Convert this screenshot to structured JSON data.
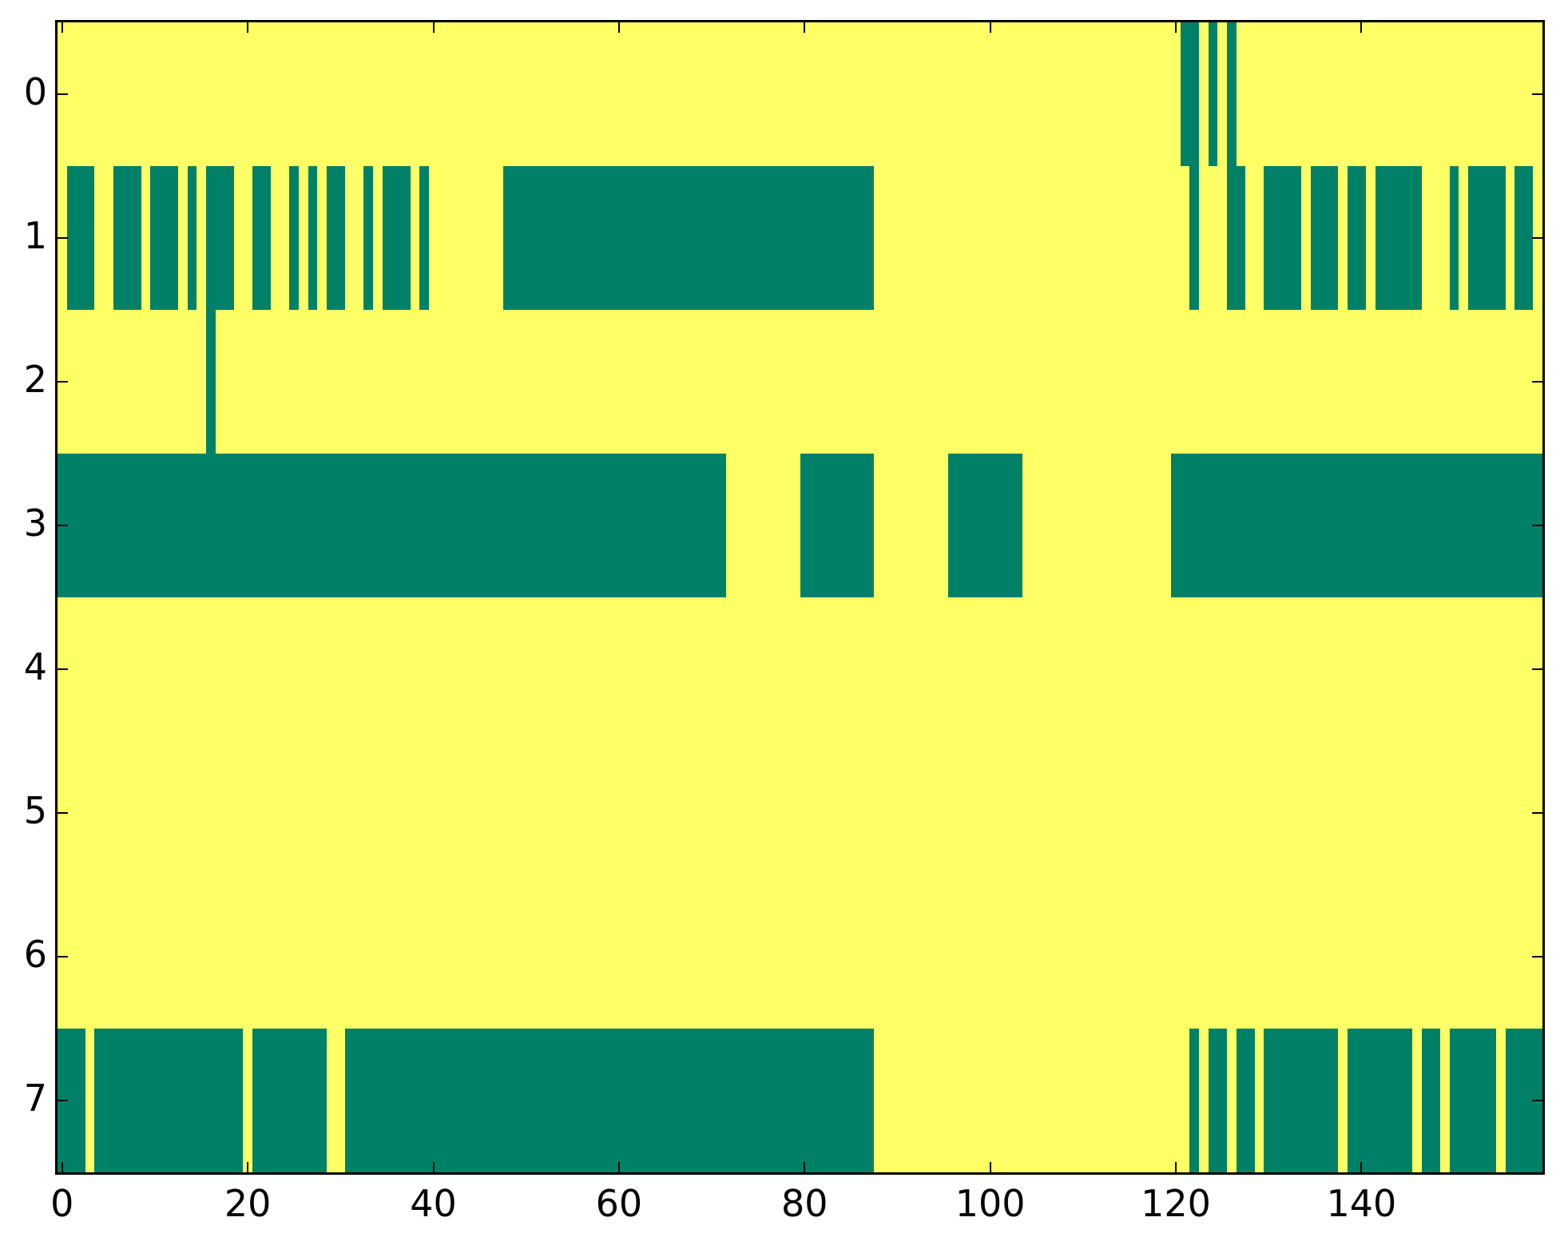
{
  "chart_data": {
    "type": "heatmap",
    "title": "",
    "xlabel": "",
    "ylabel": "",
    "n_rows": 8,
    "n_cols": 160,
    "x_range": [
      -0.5,
      159.5
    ],
    "y_range": [
      -0.5,
      7.5
    ],
    "grid": false,
    "legend": "none",
    "colormap": "summer",
    "colors": {
      "cell_green": "#008066",
      "background_yellow": "#ffff66",
      "spine": "#000000",
      "tick": "#000000",
      "label_text": "#000000",
      "figure_background": "#ffffff"
    },
    "x_ticks": {
      "values": [
        0,
        20,
        40,
        60,
        80,
        100,
        120,
        140
      ],
      "labels": [
        "0",
        "20",
        "40",
        "60",
        "80",
        "100",
        "120",
        "140"
      ]
    },
    "y_ticks": {
      "values": [
        0,
        1,
        2,
        3,
        4,
        5,
        6,
        7
      ],
      "labels": [
        "0",
        "1",
        "2",
        "3",
        "4",
        "5",
        "6",
        "7"
      ]
    },
    "tick_direction": "in",
    "tick_sides": [
      "top",
      "bottom",
      "left",
      "right"
    ],
    "green_runs_by_row": [
      [
        [
          121,
          122
        ],
        [
          124,
          124
        ],
        [
          126,
          126
        ]
      ],
      [
        [
          1,
          3
        ],
        [
          6,
          8
        ],
        [
          10,
          12
        ],
        [
          14,
          14
        ],
        [
          16,
          18
        ],
        [
          21,
          22
        ],
        [
          25,
          25
        ],
        [
          27,
          27
        ],
        [
          29,
          30
        ],
        [
          33,
          33
        ],
        [
          35,
          37
        ],
        [
          39,
          39
        ],
        [
          48,
          87
        ],
        [
          122,
          122
        ],
        [
          126,
          127
        ],
        [
          130,
          133
        ],
        [
          135,
          137
        ],
        [
          139,
          140
        ],
        [
          142,
          146
        ],
        [
          150,
          150
        ],
        [
          152,
          155
        ],
        [
          157,
          158
        ]
      ],
      [
        [
          16,
          16
        ]
      ],
      [
        [
          0,
          71
        ],
        [
          80,
          87
        ],
        [
          96,
          103
        ],
        [
          120,
          159
        ]
      ],
      [],
      [],
      [],
      [
        [
          0,
          2
        ],
        [
          4,
          19
        ],
        [
          21,
          28
        ],
        [
          31,
          87
        ],
        [
          122,
          122
        ],
        [
          124,
          125
        ],
        [
          127,
          128
        ],
        [
          130,
          137
        ],
        [
          139,
          145
        ],
        [
          147,
          148
        ],
        [
          150,
          154
        ],
        [
          156,
          159
        ]
      ]
    ]
  }
}
